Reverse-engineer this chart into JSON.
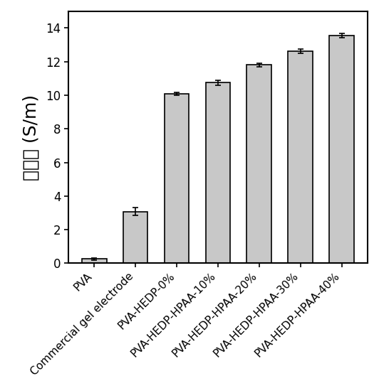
{
  "categories": [
    "PVA",
    "Commercial gel electrode",
    "PVA-HEDP-0%",
    "PVA-HEDP-HPAA-10%",
    "PVA-HEDP-HPAA-20%",
    "PVA-HEDP-HPAA-30%",
    "PVA-HEDP-HPAA-40%"
  ],
  "values": [
    0.25,
    3.08,
    10.08,
    10.75,
    11.8,
    12.62,
    13.55
  ],
  "errors": [
    0.07,
    0.25,
    0.08,
    0.15,
    0.1,
    0.12,
    0.12
  ],
  "bar_color": "#C8C8C8",
  "bar_edgecolor": "#000000",
  "ylabel": "导电率 (S/m)",
  "ylim": [
    0,
    15
  ],
  "yticks": [
    0,
    2,
    4,
    6,
    8,
    10,
    12,
    14
  ],
  "bar_width": 0.6,
  "figsize": [
    5.32,
    5.29
  ],
  "dpi": 100,
  "tick_fontsize": 12,
  "ylabel_fontsize": 18,
  "xticklabel_fontsize": 11
}
